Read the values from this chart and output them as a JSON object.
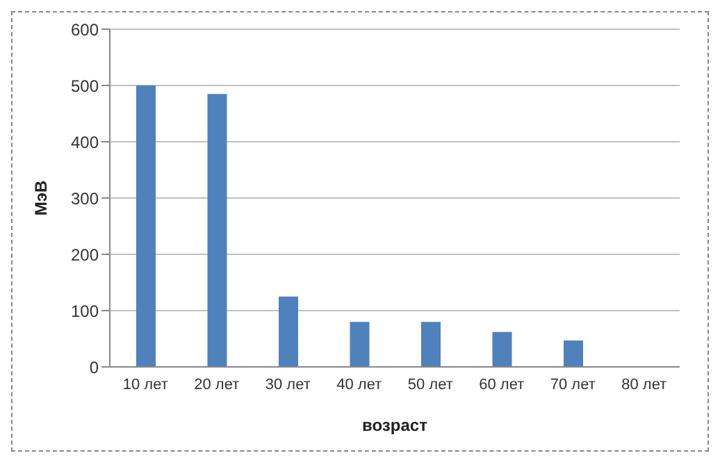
{
  "chart_data": {
    "type": "bar",
    "xlabel": "возраст",
    "ylabel": "МэВ",
    "categories": [
      "10 лет",
      "20 лет",
      "30 лет",
      "40 лет",
      "50 лет",
      "60 лет",
      "70 лет",
      "80 лет"
    ],
    "values": [
      500,
      485,
      125,
      80,
      80,
      62,
      47,
      0
    ],
    "color": "#4f81bd",
    "ylim": [
      0,
      600
    ],
    "yticks": [
      0,
      100,
      200,
      300,
      400,
      500,
      600
    ],
    "grid": "y"
  }
}
